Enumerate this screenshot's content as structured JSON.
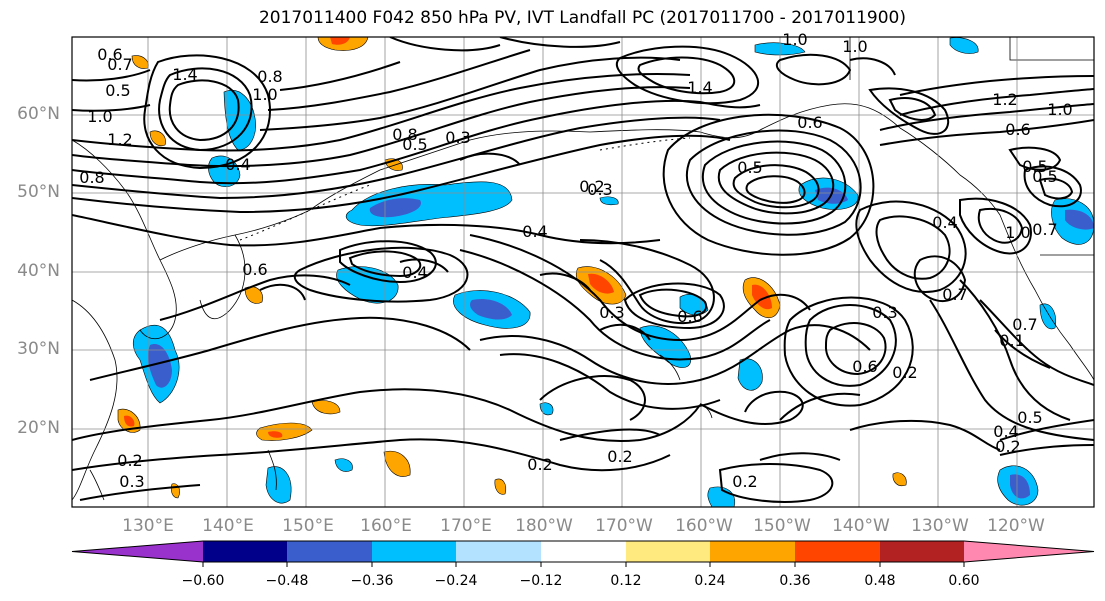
{
  "title": "2017011400 F042 850 hPa PV, IVT Landfall PC (2017011700 - 2017011900)",
  "lat_ticks": [
    "60°N",
    "50°N",
    "40°N",
    "30°N",
    "20°N"
  ],
  "lon_ticks": [
    "130°E",
    "140°E",
    "150°E",
    "160°E",
    "170°E",
    "180°W",
    "170°W",
    "160°W",
    "150°W",
    "140°W",
    "130°W",
    "120°W"
  ],
  "colorbar": {
    "tick_labels": [
      "−0.60",
      "−0.48",
      "−0.36",
      "−0.24",
      "−0.12",
      "0.12",
      "0.24",
      "0.36",
      "0.48",
      "0.60"
    ],
    "colors": [
      "#9932cc",
      "#00008b",
      "#3a5fcd",
      "#00bfff",
      "#b2e2ff",
      "#ffffff",
      "#ffea80",
      "#ffa500",
      "#ff4500",
      "#b22222",
      "#ff88b0"
    ]
  },
  "contour_labels": [
    "0.7",
    "1.4",
    "0.8",
    "1.0",
    "0.6",
    "0.5",
    "1.2",
    "0.8",
    "1.0",
    "0.4",
    "0.5",
    "0.3",
    "0.8",
    "0.3",
    "0.4",
    "1.4",
    "1.0",
    "0.6",
    "0.2",
    "0.4",
    "0.6",
    "0.3",
    "0.6",
    "0.2",
    "0.7",
    "1.0",
    "0.5",
    "1.2",
    "1.0",
    "0.6",
    "0.5",
    "0.4",
    "1.0",
    "0.7",
    "0.7",
    "0.3",
    "0.6",
    "0.5",
    "0.2",
    "0.2",
    "0.2",
    "0.3",
    "0.2",
    "0.5",
    "0.2",
    "0.4",
    "0.1"
  ]
}
